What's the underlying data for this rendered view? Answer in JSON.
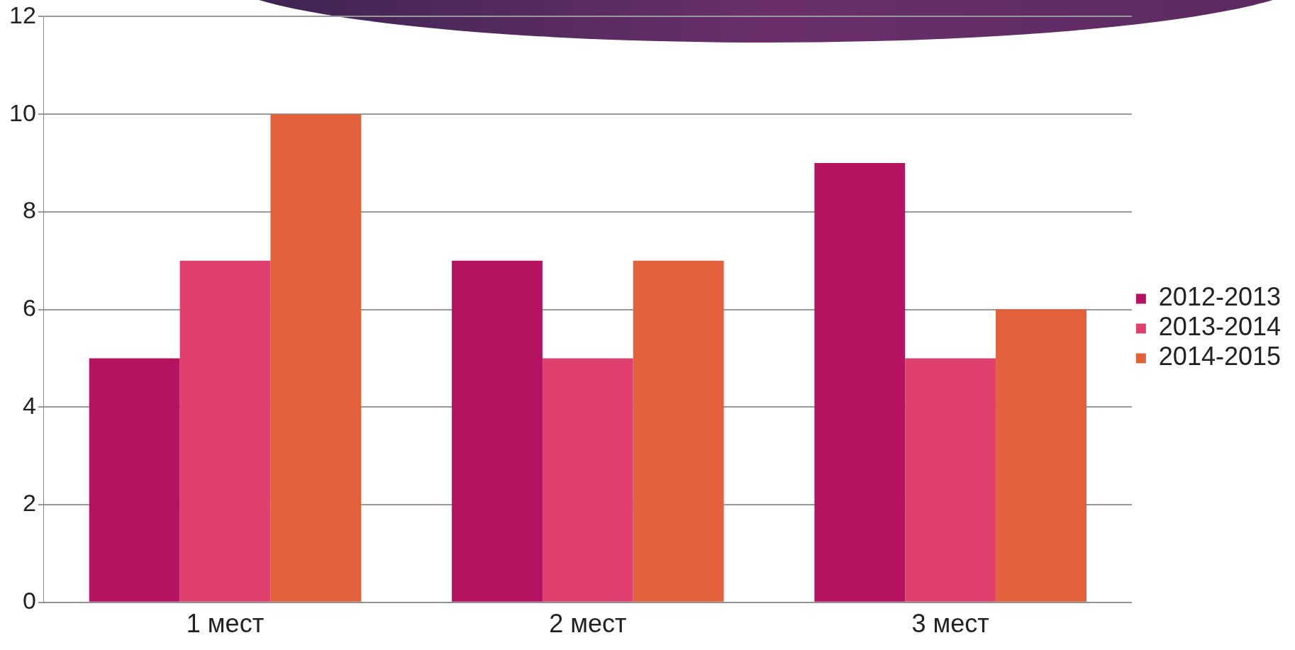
{
  "chart_data": {
    "type": "bar",
    "categories": [
      "1 мест",
      "2 мест",
      "3 мест"
    ],
    "series": [
      {
        "name": "2012-2013",
        "color": "#b5135f",
        "values": [
          5,
          7,
          9
        ]
      },
      {
        "name": "2013-2014",
        "color": "#e0406e",
        "values": [
          7,
          5,
          5
        ]
      },
      {
        "name": "2014-2015",
        "color": "#e2603a",
        "values": [
          10,
          7,
          6
        ]
      }
    ],
    "ylim": [
      0,
      12
    ],
    "yticks": [
      0,
      2,
      4,
      6,
      8,
      10,
      12
    ],
    "grid": "y",
    "legend": "right"
  }
}
